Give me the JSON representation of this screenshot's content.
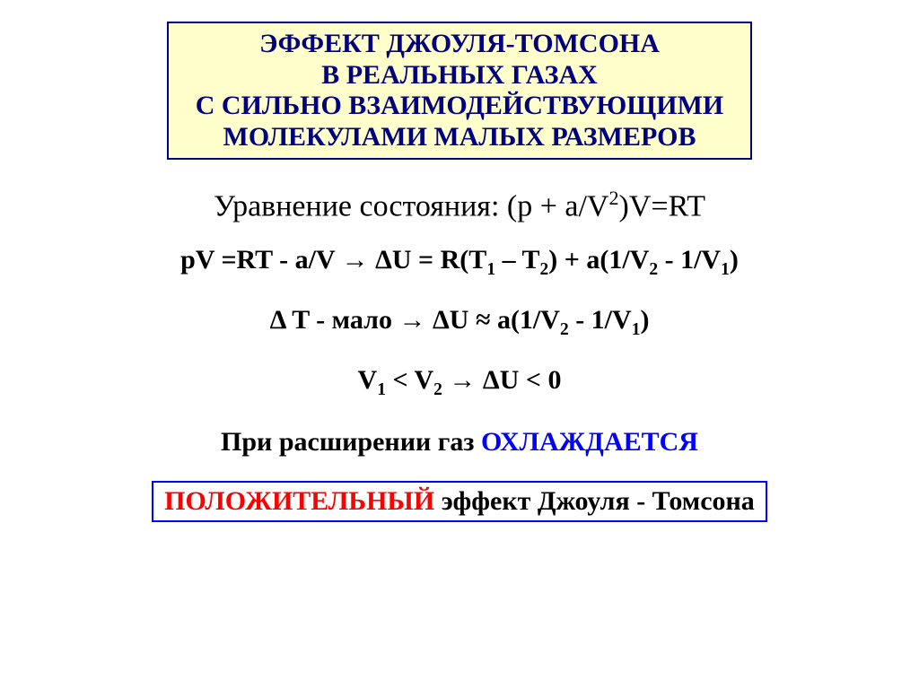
{
  "title": {
    "line1": "ЭФФЕКТ  ДЖОУЛЯ-ТОМСОНА",
    "line2": "В РЕАЛЬНЫХ ГАЗАХ",
    "line3": "С СИЛЬНО ВЗАИМОДЕЙСТВУЮЩИМИ",
    "line4": "МОЛЕКУЛАМИ МАЛЫХ РАЗМЕРОВ",
    "box_bg": "#ffffcc",
    "box_border": "#000080",
    "text_color": "#000080",
    "fontsize": 30
  },
  "state_eq": {
    "label": "Уравнение состояния:  ",
    "formula_prefix": "(p + a/V",
    "formula_sup": "2",
    "formula_suffix": ")V=RT",
    "fontsize": 34
  },
  "eq1": {
    "left": "pV =RT - a/V   ",
    "arrow": "→",
    "mid": "  ΔU  = R(T",
    "s1": "1",
    "dash": " – T",
    "s2": "2",
    "close": ") + a(1/V",
    "s3": "2",
    "minus": " - 1/V",
    "s4": "1",
    "end": ")",
    "fontsize": 30
  },
  "eq2": {
    "left": "Δ T - мало    ",
    "arrow": "→",
    "mid": "   ΔU ≈ a(1/V",
    "s1": "2",
    "minus": " - 1/V",
    "s2": "1",
    "end": ")",
    "fontsize": 30
  },
  "eq3": {
    "left": "V",
    "s1": "1",
    "lt": " < V",
    "s2": "2",
    "arrow": "   →   ",
    "right": "ΔU < 0",
    "fontsize": 30
  },
  "conclusion": {
    "prefix": "При расширении газ ",
    "word": "ОХЛАЖДАЕТСЯ",
    "word_color": "#0000ff",
    "fontsize": 30
  },
  "bottom": {
    "red": "ПОЛОЖИТЕЛЬНЫЙ",
    "rest": "  эффект  Джоуля - Томсона",
    "red_color": "#ff0000",
    "border_color": "#0000ff",
    "fontsize": 30
  },
  "colors": {
    "background": "#ffffff",
    "text": "#000000"
  }
}
